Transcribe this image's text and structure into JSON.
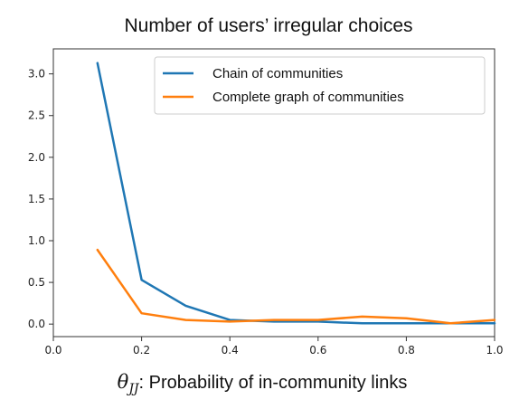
{
  "chart_data": {
    "type": "line",
    "title": "Number of users’ irregular choices",
    "xlabel_symbol": "θ",
    "xlabel_subscript": "JJ",
    "xlabel": ": Probability of in-community links",
    "ylabel": "",
    "xlim": [
      0.0,
      1.0
    ],
    "ylim": [
      -0.15,
      3.3
    ],
    "xticks": [
      0.0,
      0.2,
      0.4,
      0.6,
      0.8,
      1.0
    ],
    "xtick_labels": [
      "0.0",
      "0.2",
      "0.4",
      "0.6",
      "0.8",
      "1.0"
    ],
    "yticks": [
      0.0,
      0.5,
      1.0,
      1.5,
      2.0,
      2.5,
      3.0
    ],
    "ytick_labels": [
      "0.0",
      "0.5",
      "1.0",
      "1.5",
      "2.0",
      "2.5",
      "3.0"
    ],
    "grid": false,
    "legend_position": "top-right",
    "x": [
      0.1,
      0.2,
      0.3,
      0.4,
      0.5,
      0.6,
      0.7,
      0.8,
      0.9,
      1.0
    ],
    "series": [
      {
        "name": "Chain of communities",
        "color": "#1f77b4",
        "values": [
          3.13,
          0.53,
          0.22,
          0.05,
          0.03,
          0.03,
          0.01,
          0.01,
          0.01,
          0.01
        ]
      },
      {
        "name": "Complete graph of communities",
        "color": "#ff7f0e",
        "values": [
          0.89,
          0.13,
          0.05,
          0.03,
          0.05,
          0.05,
          0.09,
          0.07,
          0.01,
          0.05
        ]
      }
    ]
  }
}
